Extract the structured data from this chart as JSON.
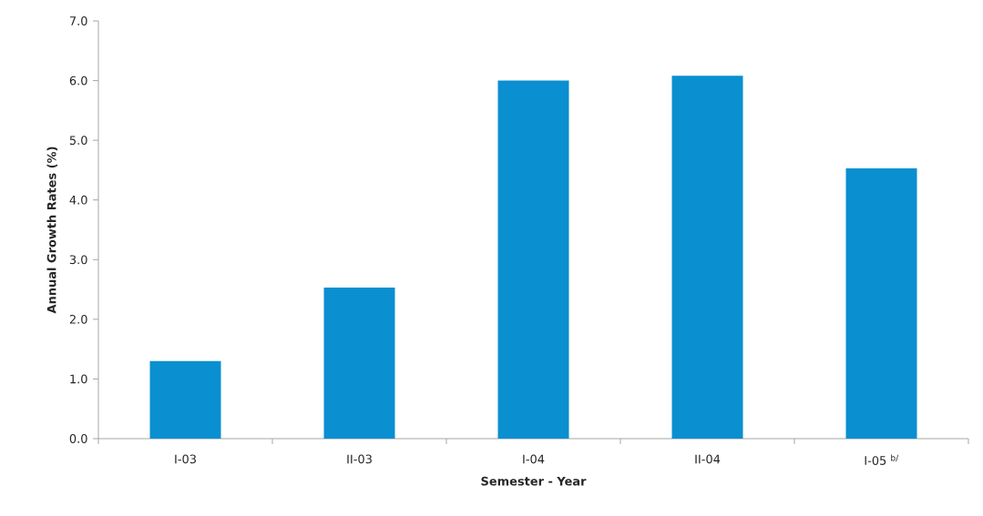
{
  "chart_data": {
    "type": "bar",
    "xlabel": "Semester - Year",
    "ylabel": "Annual Growth Rates (%)",
    "categories": [
      "I-03",
      "II-03",
      "I-04",
      "II-04",
      "I-05 $^{b/}$"
    ],
    "values": [
      1.3,
      2.53,
      6.0,
      6.08,
      4.53
    ],
    "color": "#0a8fd0",
    "ylim": [
      0,
      7
    ],
    "yticks": [
      {
        "value": 0,
        "label": "0.0"
      },
      {
        "value": 1,
        "label": "1.0"
      },
      {
        "value": 2,
        "label": "2.0"
      },
      {
        "value": 3,
        "label": "3.0"
      },
      {
        "value": 4,
        "label": "4.0"
      },
      {
        "value": 5,
        "label": "5.0"
      },
      {
        "value": 6,
        "label": "6.0"
      },
      {
        "value": 7,
        "label": "7.0"
      }
    ],
    "grid": false
  }
}
